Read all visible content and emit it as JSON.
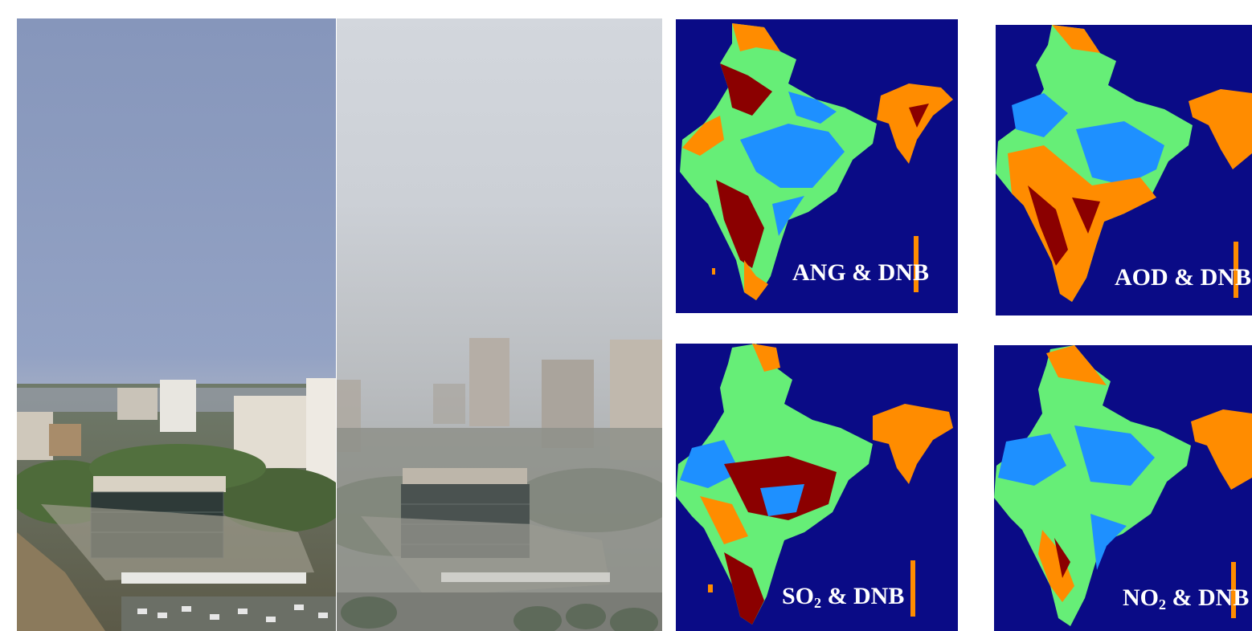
{
  "photos": [
    {
      "name": "clear-day-city-photo"
    },
    {
      "name": "smoggy-day-city-photo"
    }
  ],
  "maps": [
    {
      "prefix": "ANG",
      "subscript": "",
      "suffix": " & DNB"
    },
    {
      "prefix": "AOD",
      "subscript": "",
      "suffix": " & DNB"
    },
    {
      "prefix": "SO",
      "subscript": "2",
      "suffix": " & DNB"
    },
    {
      "prefix": "NO",
      "subscript": "2",
      "suffix": " & DNB"
    }
  ],
  "colors": {
    "map_background": "#0a0b86",
    "class_orange": "#ff8c00",
    "class_green": "#66ee77",
    "class_blue": "#1e90ff",
    "class_darkred": "#8b0000"
  }
}
